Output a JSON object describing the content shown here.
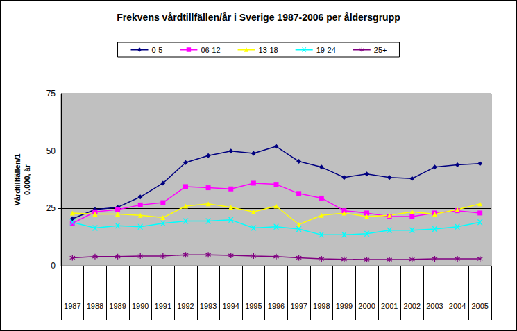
{
  "chart_data": {
    "type": "line",
    "title": "Frekvens vårdtillfällen/år i Sverige 1987-2006 per åldersgrupp",
    "y_label": "Vårdtillfällen/1\n0.000, år",
    "categories": [
      "1987",
      "1988",
      "1989",
      "1990",
      "1991",
      "1992",
      "1993",
      "1994",
      "1995",
      "1996",
      "1997",
      "1998",
      "1999",
      "2000",
      "2001",
      "2002",
      "2003",
      "2004",
      "2005"
    ],
    "series": [
      {
        "name": "0-5",
        "color": "#000080",
        "marker": "diamond",
        "values": [
          20.5,
          24.5,
          25.5,
          30,
          36,
          45,
          48,
          50,
          49,
          52,
          45.5,
          43,
          38.5,
          40,
          38.5,
          38,
          43,
          44,
          44.5
        ]
      },
      {
        "name": "06-12",
        "color": "#ff00ff",
        "marker": "square",
        "values": [
          18.5,
          23.5,
          24.5,
          26.5,
          27.5,
          34.5,
          34,
          33.5,
          36,
          35.5,
          31.5,
          29.5,
          24,
          23,
          21.5,
          21.5,
          23,
          24,
          23
        ]
      },
      {
        "name": "13-18",
        "color": "#ffff00",
        "marker": "triangle",
        "values": [
          23,
          22.5,
          22.5,
          22,
          21,
          26,
          27,
          25.5,
          23.5,
          26,
          18,
          22,
          23,
          21.5,
          22,
          23.5,
          22.5,
          24.5,
          27
        ]
      },
      {
        "name": "19-24",
        "color": "#00ffff",
        "marker": "x",
        "values": [
          19,
          16.5,
          17.5,
          17,
          18.5,
          19.5,
          19.5,
          20,
          16.5,
          17,
          16,
          13.5,
          13.5,
          14,
          15.5,
          15.5,
          16,
          17,
          19
        ]
      },
      {
        "name": "25+",
        "color": "#800080",
        "marker": "star",
        "values": [
          3.5,
          4,
          4,
          4.2,
          4.2,
          4.8,
          4.8,
          4.5,
          4.2,
          4,
          3.5,
          3,
          2.8,
          2.7,
          2.7,
          2.8,
          3,
          3,
          3
        ]
      }
    ],
    "ylim": [
      0,
      75
    ],
    "yticks": [
      0,
      25,
      50,
      75
    ],
    "grid": true,
    "legend": "top"
  }
}
